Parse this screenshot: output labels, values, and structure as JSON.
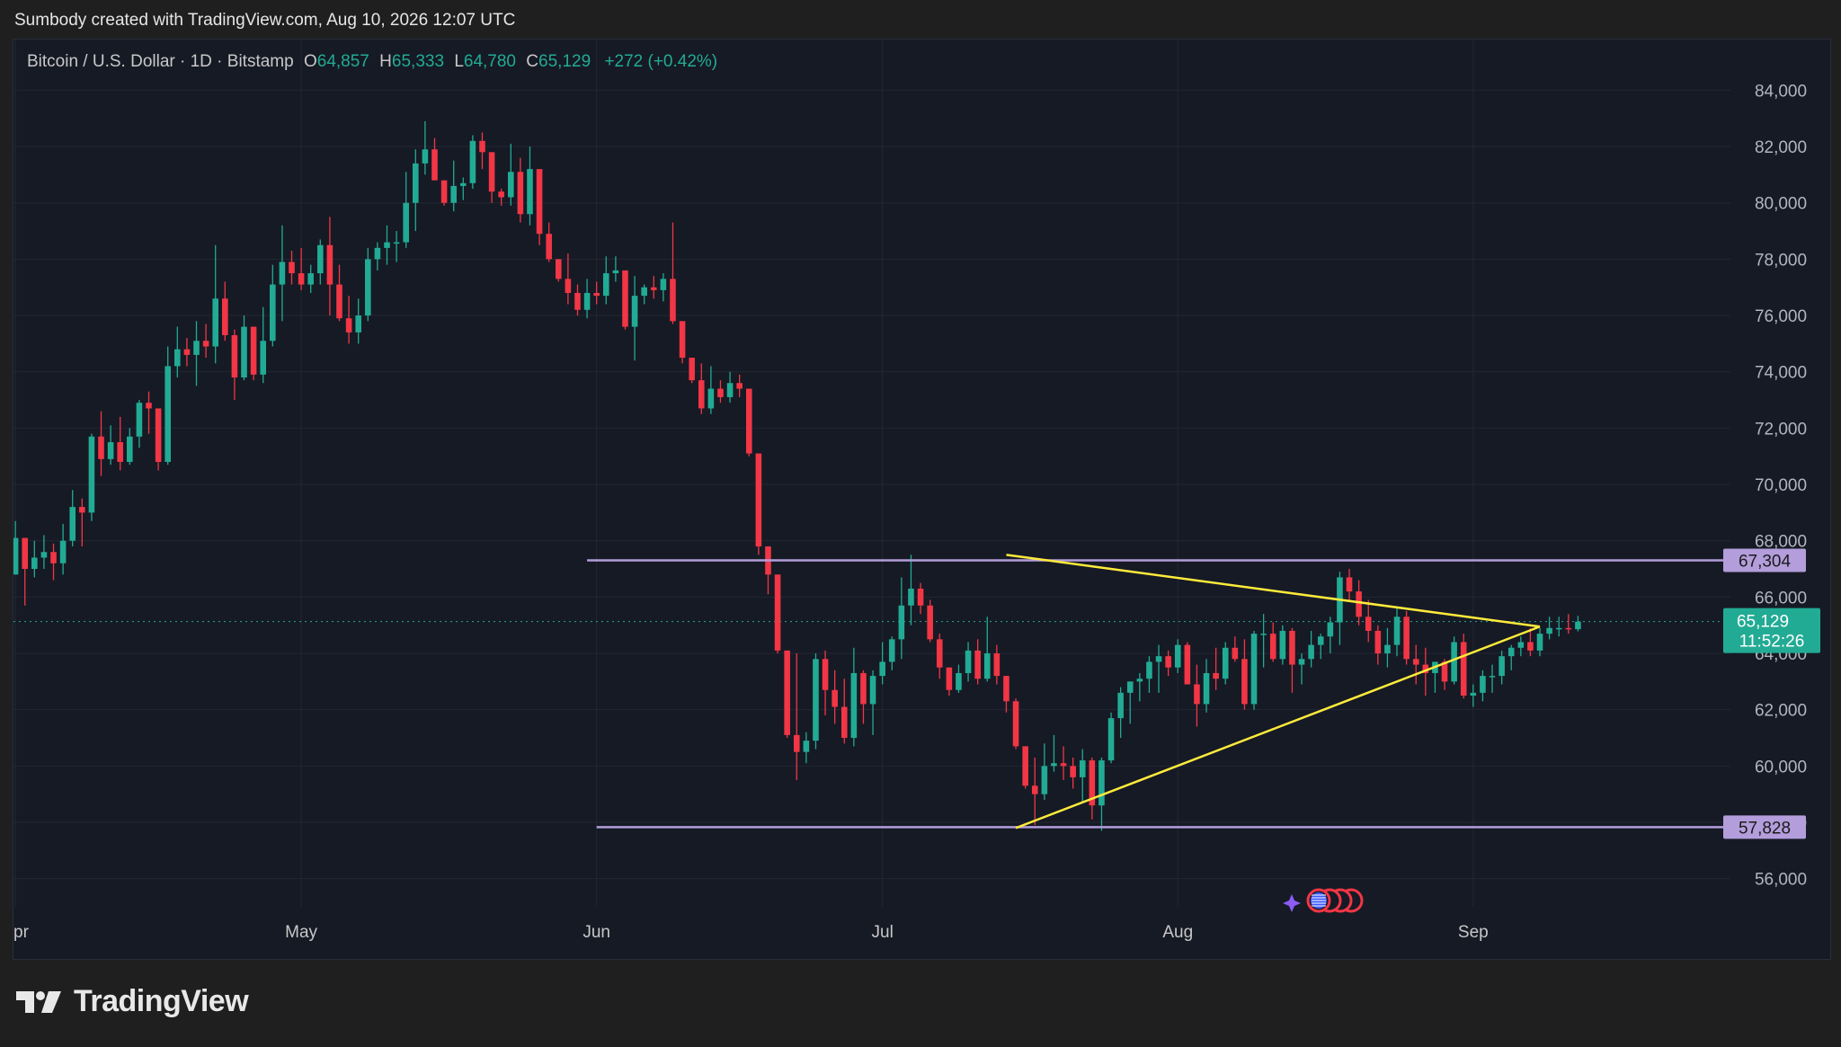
{
  "header": {
    "created_text": "Sumbody created with TradingView.com, Aug 10, 2026 12:07 UTC"
  },
  "legend": {
    "symbol": "Bitcoin / U.S. Dollar · 1D · Bitstamp",
    "o_label": "O",
    "o_value": "64,857",
    "h_label": "H",
    "h_value": "65,333",
    "l_label": "L",
    "l_value": "64,780",
    "c_label": "C",
    "c_value": "65,129",
    "change": "+272 (+0.42%)"
  },
  "brand": {
    "name": "TradingView",
    "icon": "tradingview-logo-icon"
  },
  "colors": {
    "up": "#22ab94",
    "down": "#f23645",
    "background": "#161a25",
    "grid": "#232733",
    "level": "#b39ddb",
    "trendline": "#ffeb3b"
  },
  "chart_data": {
    "type": "candlestick",
    "title": "Bitcoin / U.S. Dollar · 1D · Bitstamp",
    "x_ticks": [
      "Apr",
      "May",
      "Jun",
      "Jul",
      "Aug",
      "Sep"
    ],
    "y_ticks": [
      "56,000",
      "58,000",
      "60,000",
      "62,000",
      "64,000",
      "66,000",
      "68,000",
      "70,000",
      "72,000",
      "74,000",
      "76,000",
      "78,000",
      "80,000",
      "82,000",
      "84,000"
    ],
    "y_range": [
      55000,
      85800
    ],
    "x_range_days_from_apr1": [
      -0.2,
      180
    ],
    "candles": [
      [
        66800,
        68700,
        66800,
        68100
      ],
      [
        68100,
        68100,
        65700,
        67000
      ],
      [
        67000,
        68000,
        66700,
        67400
      ],
      [
        67400,
        68200,
        67000,
        67600
      ],
      [
        67600,
        67900,
        66600,
        67200
      ],
      [
        67200,
        68600,
        66800,
        68000
      ],
      [
        68000,
        69800,
        67800,
        69200
      ],
      [
        69200,
        69500,
        67800,
        69000
      ],
      [
        69000,
        71800,
        68700,
        71700
      ],
      [
        71700,
        72600,
        70300,
        70900
      ],
      [
        70900,
        72100,
        70700,
        71500
      ],
      [
        71500,
        72400,
        70500,
        70800
      ],
      [
        70800,
        72000,
        70700,
        71700
      ],
      [
        71700,
        73000,
        71300,
        72900
      ],
      [
        72900,
        73300,
        71800,
        72700
      ],
      [
        72700,
        72700,
        70500,
        70800
      ],
      [
        70800,
        74900,
        70700,
        74200
      ],
      [
        74200,
        75600,
        73800,
        74800
      ],
      [
        74800,
        75200,
        74200,
        74600
      ],
      [
        74600,
        75800,
        73500,
        75100
      ],
      [
        75100,
        75700,
        74500,
        74900
      ],
      [
        74900,
        78500,
        74300,
        76600
      ],
      [
        76600,
        77200,
        75100,
        75300
      ],
      [
        75300,
        75500,
        73000,
        73800
      ],
      [
        73800,
        76000,
        73700,
        75600
      ],
      [
        75600,
        75600,
        73700,
        73900
      ],
      [
        73900,
        76300,
        73600,
        75100
      ],
      [
        75100,
        77800,
        74900,
        77100
      ],
      [
        77100,
        79200,
        75800,
        77900
      ],
      [
        77900,
        78300,
        77100,
        77500
      ],
      [
        77500,
        78400,
        76900,
        77100
      ],
      [
        77100,
        77800,
        76800,
        77500
      ],
      [
        77500,
        78700,
        77100,
        78500
      ],
      [
        78500,
        79500,
        76000,
        77100
      ],
      [
        77100,
        77800,
        75800,
        75900
      ],
      [
        75900,
        76700,
        75000,
        75400
      ],
      [
        75400,
        76600,
        75000,
        76000
      ],
      [
        76000,
        78400,
        75800,
        78000
      ],
      [
        78000,
        78600,
        77600,
        78400
      ],
      [
        78400,
        79200,
        77800,
        78600
      ],
      [
        78600,
        79000,
        77900,
        78600
      ],
      [
        78600,
        81100,
        78400,
        80000
      ],
      [
        80000,
        81900,
        79000,
        81400
      ],
      [
        81400,
        82900,
        81000,
        81900
      ],
      [
        81900,
        82300,
        80800,
        80800
      ],
      [
        80800,
        80800,
        79900,
        80000
      ],
      [
        80000,
        81500,
        79700,
        80600
      ],
      [
        80600,
        80900,
        80100,
        80700
      ],
      [
        80700,
        82400,
        80500,
        82200
      ],
      [
        82200,
        82500,
        81200,
        81800
      ],
      [
        81800,
        81800,
        80000,
        80400
      ],
      [
        80400,
        80500,
        79900,
        80200
      ],
      [
        80200,
        82100,
        79900,
        81100
      ],
      [
        81100,
        81600,
        79300,
        79600
      ],
      [
        79600,
        82000,
        79200,
        81200
      ],
      [
        81200,
        81200,
        78500,
        78900
      ],
      [
        78900,
        79300,
        77900,
        78000
      ],
      [
        78000,
        78000,
        77200,
        77300
      ],
      [
        77300,
        78200,
        76400,
        76800
      ],
      [
        76800,
        77100,
        76000,
        76200
      ],
      [
        76200,
        77300,
        75900,
        76800
      ],
      [
        76800,
        77200,
        76400,
        76700
      ],
      [
        76700,
        78100,
        76400,
        77500
      ],
      [
        77500,
        78100,
        77200,
        77600
      ],
      [
        77600,
        77600,
        75500,
        75600
      ],
      [
        75600,
        77400,
        74400,
        76700
      ],
      [
        76700,
        77100,
        76400,
        77000
      ],
      [
        77000,
        77400,
        76600,
        76900
      ],
      [
        76900,
        77500,
        76500,
        77300
      ],
      [
        77300,
        79300,
        75700,
        75800
      ],
      [
        75800,
        75800,
        74300,
        74500
      ],
      [
        74500,
        74500,
        73600,
        73700
      ],
      [
        73700,
        74300,
        72500,
        72700
      ],
      [
        72700,
        74200,
        72500,
        73400
      ],
      [
        73400,
        73700,
        72900,
        73100
      ],
      [
        73100,
        74000,
        72900,
        73600
      ],
      [
        73600,
        73900,
        73100,
        73400
      ],
      [
        73400,
        73400,
        71000,
        71100
      ],
      [
        71100,
        71100,
        67500,
        67800
      ],
      [
        67800,
        67800,
        66100,
        66800
      ],
      [
        66800,
        66800,
        64000,
        64100
      ],
      [
        64100,
        64100,
        61000,
        61100
      ],
      [
        61100,
        64000,
        59500,
        60500
      ],
      [
        60500,
        61200,
        60100,
        60900
      ],
      [
        60900,
        64000,
        60600,
        63800
      ],
      [
        63800,
        64100,
        61800,
        62700
      ],
      [
        62700,
        63400,
        61500,
        62100
      ],
      [
        62100,
        63100,
        60800,
        61000
      ],
      [
        61000,
        64200,
        60700,
        63300
      ],
      [
        63300,
        63400,
        61500,
        62200
      ],
      [
        62200,
        63400,
        61100,
        63200
      ],
      [
        63200,
        64400,
        62900,
        63700
      ],
      [
        63700,
        64600,
        63400,
        64500
      ],
      [
        64500,
        66700,
        63800,
        65700
      ],
      [
        65700,
        67500,
        65000,
        66300
      ],
      [
        66300,
        66500,
        65400,
        65700
      ],
      [
        65700,
        65900,
        64400,
        64500
      ],
      [
        64500,
        64700,
        63100,
        63500
      ],
      [
        63500,
        63500,
        62500,
        62700
      ],
      [
        62700,
        63600,
        62600,
        63300
      ],
      [
        63300,
        64400,
        63000,
        64100
      ],
      [
        64100,
        64500,
        62900,
        63100
      ],
      [
        63100,
        65300,
        63000,
        64000
      ],
      [
        64000,
        64300,
        62900,
        63200
      ],
      [
        63200,
        63200,
        61900,
        62300
      ],
      [
        62300,
        62400,
        60600,
        60700
      ],
      [
        60700,
        60700,
        59200,
        59300
      ],
      [
        59300,
        60300,
        57900,
        59000
      ],
      [
        59000,
        60800,
        58800,
        60000
      ],
      [
        60000,
        61100,
        59800,
        60100
      ],
      [
        60100,
        60700,
        59500,
        60000
      ],
      [
        60000,
        60300,
        59200,
        59600
      ],
      [
        59600,
        60600,
        58700,
        60200
      ],
      [
        60200,
        60300,
        58100,
        58600
      ],
      [
        58600,
        60300,
        57700,
        60200
      ],
      [
        60200,
        61900,
        60100,
        61700
      ],
      [
        61700,
        62800,
        61000,
        62600
      ],
      [
        62600,
        63000,
        61500,
        63000
      ],
      [
        63000,
        63300,
        62300,
        63100
      ],
      [
        63100,
        63900,
        62600,
        63700
      ],
      [
        63700,
        64300,
        62600,
        63900
      ],
      [
        63900,
        64100,
        63200,
        63500
      ],
      [
        63500,
        64500,
        63300,
        64300
      ],
      [
        64300,
        64400,
        62900,
        62900
      ],
      [
        62900,
        63600,
        61400,
        62200
      ],
      [
        62200,
        63800,
        61900,
        63300
      ],
      [
        63300,
        64200,
        62700,
        63100
      ],
      [
        63100,
        64400,
        62900,
        64200
      ],
      [
        64200,
        64600,
        63700,
        63800
      ],
      [
        63800,
        64500,
        62000,
        62200
      ],
      [
        62200,
        64800,
        62000,
        64700
      ],
      [
        64700,
        65400,
        63500,
        64700
      ],
      [
        64700,
        65100,
        63700,
        63800
      ],
      [
        63800,
        65000,
        63600,
        64800
      ],
      [
        64800,
        64900,
        62600,
        63600
      ],
      [
        63600,
        64000,
        62900,
        63800
      ],
      [
        63800,
        64800,
        63500,
        64300
      ],
      [
        64300,
        64700,
        63800,
        64600
      ],
      [
        64600,
        65300,
        64000,
        65100
      ],
      [
        65100,
        66900,
        64300,
        66700
      ],
      [
        66700,
        67000,
        65900,
        66200
      ],
      [
        66200,
        66600,
        65000,
        65300
      ],
      [
        65300,
        65900,
        64400,
        64800
      ],
      [
        64800,
        65000,
        63600,
        64000
      ],
      [
        64000,
        64900,
        63500,
        64300
      ],
      [
        64300,
        65600,
        63900,
        65300
      ],
      [
        65300,
        65500,
        63600,
        63800
      ],
      [
        63800,
        64300,
        62900,
        63600
      ],
      [
        63600,
        64200,
        62500,
        63300
      ],
      [
        63300,
        63700,
        62600,
        63700
      ],
      [
        63700,
        63800,
        62700,
        63000
      ],
      [
        63000,
        64600,
        62900,
        64400
      ],
      [
        64400,
        64700,
        62400,
        62500
      ],
      [
        62500,
        62900,
        62100,
        62600
      ],
      [
        62600,
        63400,
        62300,
        63200
      ],
      [
        63200,
        63600,
        62600,
        63200
      ],
      [
        63200,
        64100,
        62900,
        63900
      ],
      [
        63900,
        64300,
        63400,
        64200
      ],
      [
        64200,
        64600,
        63900,
        64400
      ],
      [
        64400,
        64900,
        63900,
        64100
      ],
      [
        64100,
        64900,
        63900,
        64700
      ],
      [
        64700,
        65300,
        64500,
        64900
      ],
      [
        64900,
        65300,
        64600,
        64900
      ],
      [
        64900,
        65400,
        64700,
        64857
      ],
      [
        64857,
        65333,
        64780,
        65129
      ]
    ],
    "horizontal_levels": [
      {
        "price": 67304,
        "label": "67,304"
      },
      {
        "price": 57828,
        "label": "57,828"
      }
    ],
    "trendlines": [
      {
        "from": [
          104,
          67500
        ],
        "to": [
          160,
          64950
        ]
      },
      {
        "from": [
          105,
          57800
        ],
        "to": [
          160,
          64950
        ]
      }
    ],
    "last_price": {
      "label": "65,129",
      "countdown": "11:52:26",
      "price": 65129
    }
  }
}
